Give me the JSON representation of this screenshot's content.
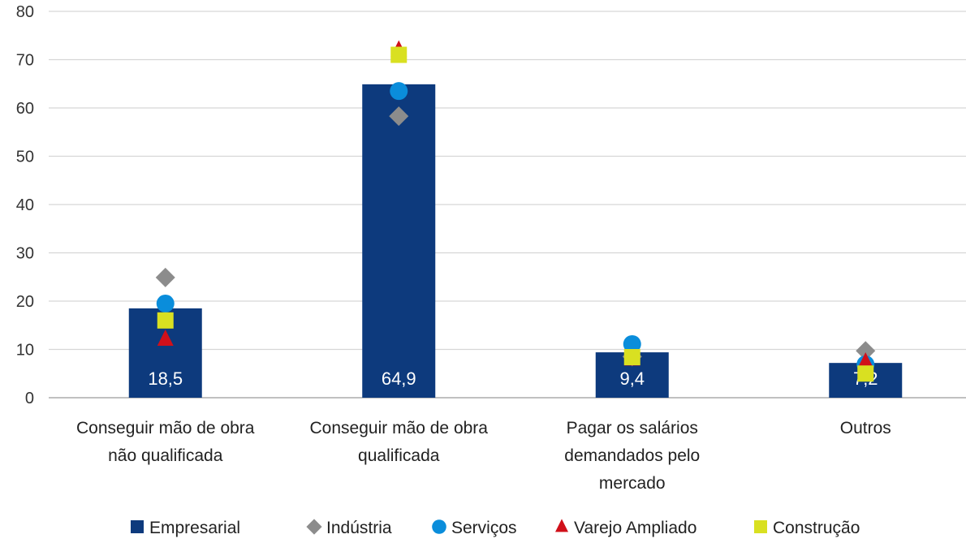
{
  "chart_data": {
    "type": "bar",
    "title": "",
    "xlabel": "",
    "ylabel": "",
    "ylim": [
      0,
      80
    ],
    "yticks": [
      "0",
      "10",
      "20",
      "30",
      "40",
      "50",
      "60",
      "70",
      "80"
    ],
    "grid": true,
    "legend_position": "bottom",
    "categories": [
      [
        "Conseguir mão de obra",
        "não qualificada"
      ],
      [
        "Conseguir mão de obra",
        "qualificada"
      ],
      [
        "Pagar os salários",
        "demandados pelo",
        "mercado"
      ],
      [
        "Outros"
      ]
    ],
    "data_labels": [
      "18,5",
      "64,9",
      "9,4",
      "7,2"
    ],
    "series": [
      {
        "name": "Empresarial",
        "marker": "bar",
        "color": "#0d3a7d",
        "values": [
          18.5,
          64.9,
          9.4,
          7.2
        ]
      },
      {
        "name": "Indústria",
        "marker": "diamond",
        "color": "#8c8c8c",
        "values": [
          24.9,
          58.3,
          8.5,
          9.7
        ]
      },
      {
        "name": "Serviços",
        "marker": "circle",
        "color": "#0a8ddb",
        "values": [
          19.5,
          63.5,
          11.1,
          6.9
        ]
      },
      {
        "name": "Varejo Ampliado",
        "marker": "triangle",
        "color": "#d0101a",
        "values": [
          12.1,
          72.0,
          8.0,
          7.4
        ]
      },
      {
        "name": "Construção",
        "marker": "square",
        "color": "#d9e021",
        "values": [
          16.0,
          71.0,
          8.4,
          5.0
        ]
      }
    ]
  }
}
